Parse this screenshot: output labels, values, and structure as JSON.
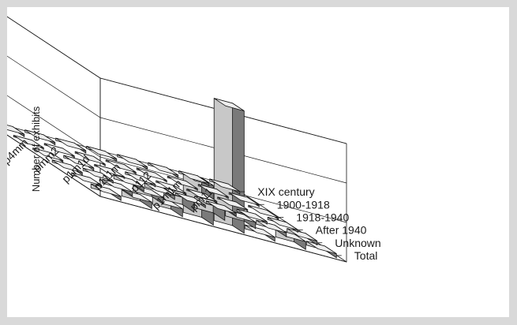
{
  "chart_data": {
    "type": "bar",
    "subtype": "3d-bar",
    "title": "",
    "ylabel": "Number of exhibits",
    "ylim": [
      0,
      150
    ],
    "yticks": [
      0,
      50,
      100,
      150
    ],
    "grid": true,
    "categories": [
      "p2mm",
      "p4mm",
      "pmm2",
      "p1m1d",
      "p111m",
      "p112",
      "p1m1m",
      "pm11"
    ],
    "series": [
      {
        "name": "Total",
        "values": [
          5,
          8,
          10,
          50,
          155,
          5,
          10,
          5
        ]
      },
      {
        "name": "Unknown",
        "values": [
          3,
          5,
          8,
          15,
          15,
          8,
          5,
          5
        ]
      },
      {
        "name": "After 1940",
        "values": [
          3,
          3,
          5,
          5,
          3,
          3,
          3,
          3
        ]
      },
      {
        "name": "1918-1940",
        "values": [
          2,
          3,
          2,
          3,
          2,
          2,
          2,
          2
        ]
      },
      {
        "name": "1900-1918",
        "values": [
          2,
          2,
          2,
          2,
          2,
          2,
          2,
          2
        ]
      },
      {
        "name": "XIX century",
        "values": [
          3,
          3,
          3,
          3,
          3,
          3,
          3,
          3
        ]
      }
    ]
  },
  "colors": {
    "bar_front": "#c8c8c8",
    "bar_side": "#7a7a7a",
    "bar_top": "#eeeeee",
    "frame_bg": "#ffffff",
    "outer_bg": "#d9d9d9",
    "axis": "#1a1a1a"
  }
}
